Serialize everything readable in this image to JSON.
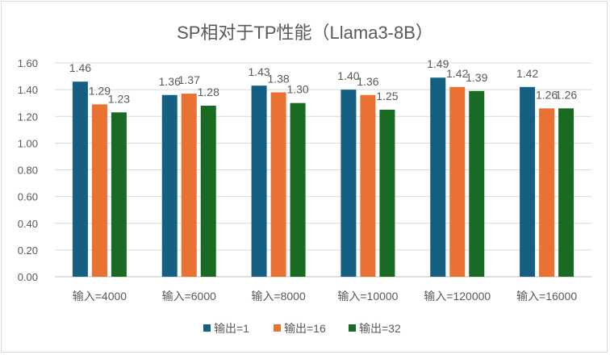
{
  "chart_data": {
    "type": "bar",
    "title": "SP相对于TP性能（Llama3-8B）",
    "xlabel": "",
    "ylabel": "",
    "ylim": [
      0,
      1.6
    ],
    "yticks": [
      "0.00",
      "0.20",
      "0.40",
      "0.60",
      "0.80",
      "1.00",
      "1.20",
      "1.40",
      "1.60"
    ],
    "grid": true,
    "legend_position": "bottom",
    "categories": [
      "输入=4000",
      "输入=6000",
      "输入=8000",
      "输入=10000",
      "输入=120000",
      "输入=16000"
    ],
    "series": [
      {
        "name": "输出=1",
        "color": "#156082",
        "values": [
          1.46,
          1.36,
          1.43,
          1.4,
          1.49,
          1.42
        ]
      },
      {
        "name": "输出=16",
        "color": "#E97132",
        "values": [
          1.29,
          1.37,
          1.38,
          1.36,
          1.42,
          1.26
        ]
      },
      {
        "name": "输出=32",
        "color": "#196B24",
        "values": [
          1.23,
          1.28,
          1.3,
          1.25,
          1.39,
          1.26
        ]
      }
    ]
  }
}
